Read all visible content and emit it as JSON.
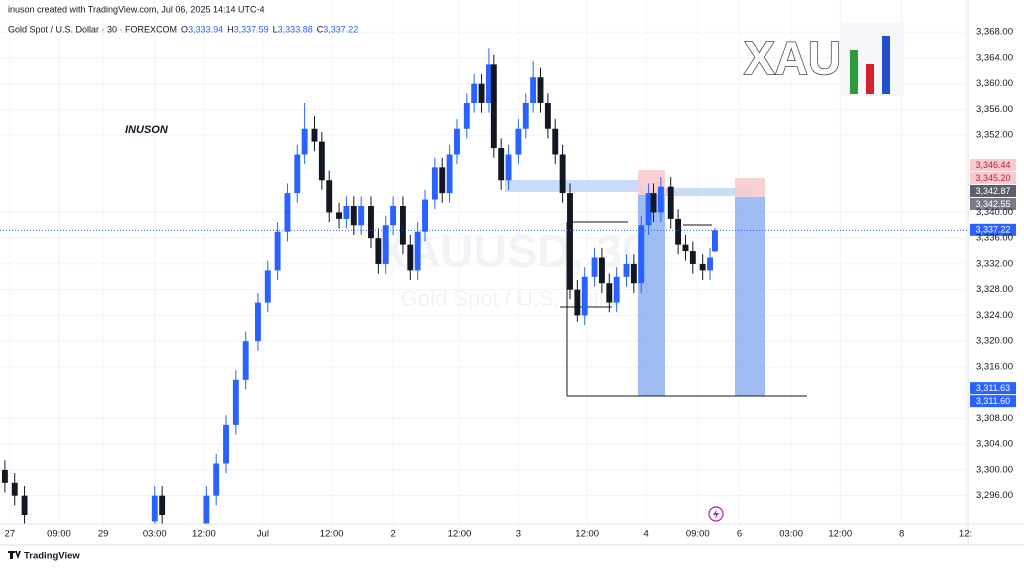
{
  "chart_data": {
    "type": "candlestick",
    "header": "inuson created with TradingView.com, Jul 06, 2025 14:14 UTC-4",
    "symbol": "Gold Spot / U.S. Dollar · 30 · FOREXCOM",
    "ohlc": [
      {
        "key": "O",
        "text": "3,333.94"
      },
      {
        "key": "H",
        "text": "3,337.59"
      },
      {
        "key": "L",
        "text": "3,333.88"
      },
      {
        "key": "C",
        "text": "3,337.22"
      }
    ],
    "annotation": "INUSON",
    "watermark": "XAUUSD, 30",
    "watermark_sub": "Gold Spot / U.S. Dollar",
    "logo": "XAU",
    "brand": "TradingView",
    "up_color": "#2962ff",
    "down_color": "#131722",
    "grid": true,
    "xlim": [
      0,
      394
    ],
    "ylim": [
      3291.6,
      3373
    ],
    "xticks": [
      {
        "value": 4,
        "label": "27"
      },
      {
        "value": 24,
        "label": "09:00"
      },
      {
        "value": 42,
        "label": "29"
      },
      {
        "value": 63,
        "label": "03:00"
      },
      {
        "value": 83,
        "label": "12:00"
      },
      {
        "value": 107,
        "label": "Jul"
      },
      {
        "value": 135,
        "label": "12:00"
      },
      {
        "value": 160,
        "label": "2"
      },
      {
        "value": 187,
        "label": "12:00"
      },
      {
        "value": 211,
        "label": "3"
      },
      {
        "value": 239,
        "label": "12:00"
      },
      {
        "value": 263,
        "label": "4"
      },
      {
        "value": 284,
        "label": "09:00"
      },
      {
        "value": 301,
        "label": "6"
      },
      {
        "value": 322,
        "label": "03:00"
      },
      {
        "value": 342,
        "label": "12:00"
      },
      {
        "value": 367,
        "label": "8"
      },
      {
        "value": 393,
        "label": "12:"
      }
    ],
    "yticks": [
      {
        "value": 3296,
        "label": "3,296.00"
      },
      {
        "value": 3300,
        "label": "3,300.00"
      },
      {
        "value": 3304,
        "label": "3,304.00"
      },
      {
        "value": 3308,
        "label": "3,308.00"
      },
      {
        "value": 3316,
        "label": "3,316.00"
      },
      {
        "value": 3320,
        "label": "3,320.00"
      },
      {
        "value": 3324,
        "label": "3,324.00"
      },
      {
        "value": 3328,
        "label": "3,328.00"
      },
      {
        "value": 3332,
        "label": "3,332.00"
      },
      {
        "value": 3336,
        "label": "3,336.00"
      },
      {
        "value": 3340,
        "label": "3,340.00"
      },
      {
        "value": 3352,
        "label": "3,352.00"
      },
      {
        "value": 3356,
        "label": "3,356.00"
      },
      {
        "value": 3360,
        "label": "3,360.00"
      },
      {
        "value": 3364,
        "label": "3,364.00"
      },
      {
        "value": 3368,
        "label": "3,368.00"
      }
    ],
    "x": [
      2,
      6,
      10,
      63,
      66,
      84,
      88,
      92,
      96,
      100,
      105,
      109,
      113,
      117,
      121,
      124,
      128,
      131,
      134,
      138,
      141,
      144,
      147,
      151,
      154,
      157,
      160,
      164,
      167,
      170,
      173,
      177,
      180,
      183,
      186,
      190,
      193,
      196,
      199,
      201,
      204,
      207,
      211,
      214,
      217,
      220,
      223,
      226,
      229,
      232,
      235,
      238,
      242,
      245,
      248,
      251,
      255,
      258,
      261,
      264,
      266,
      269,
      273,
      276,
      279,
      282,
      286,
      289,
      291
    ],
    "open": [
      3300,
      3298,
      3296,
      3292,
      3296,
      3291,
      3296,
      3301,
      3307,
      3314,
      3320,
      3326,
      3331,
      3337,
      3343,
      3349,
      3353,
      3351,
      3345,
      3340,
      3339,
      3341,
      3338,
      3341,
      3336,
      3332,
      3338,
      3341,
      3335,
      3331,
      3337,
      3342,
      3347,
      3343,
      3349,
      3353,
      3357,
      3360,
      3357,
      3363,
      3350,
      3345,
      3349,
      3353,
      3357,
      3361,
      3357,
      3353,
      3349,
      3343,
      3328,
      3324,
      3330,
      3333,
      3329,
      3326,
      3330,
      3332,
      3329,
      3338,
      3343,
      3340,
      3344,
      3339,
      3335,
      3334,
      3332,
      3331,
      3333.94
    ],
    "high": [
      3301.5,
      3299.5,
      3297.5,
      3297.5,
      3297.5,
      3297.5,
      3302.5,
      3308.5,
      3315.5,
      3321.5,
      3327.5,
      3332.5,
      3338.5,
      3344.5,
      3350.5,
      3357,
      3355,
      3352.5,
      3346.5,
      3341.5,
      3342.5,
      3342.5,
      3342.5,
      3342.5,
      3337.5,
      3339.5,
      3342.5,
      3342.5,
      3336.5,
      3338.5,
      3343.5,
      3348.5,
      3348.5,
      3350.5,
      3354.5,
      3358.5,
      3361.5,
      3361.5,
      3365.5,
      3364.5,
      3351.5,
      3350.5,
      3354.5,
      3358.5,
      3363.5,
      3362.5,
      3358.5,
      3354.5,
      3350.5,
      3344.5,
      3329.5,
      3331.5,
      3334.5,
      3334.5,
      3330.5,
      3331.5,
      3333.5,
      3333.5,
      3339.5,
      3344.5,
      3344.5,
      3345.5,
      3345.5,
      3340.5,
      3336.5,
      3335.5,
      3333.5,
      3334.5,
      3337.59
    ],
    "low": [
      3296.5,
      3294.5,
      3291.5,
      3290.5,
      3291.5,
      3289.5,
      3294.5,
      3299.5,
      3305.5,
      3312.5,
      3318.5,
      3324.5,
      3329.5,
      3335.5,
      3341.5,
      3347.5,
      3349.5,
      3343.5,
      3338.5,
      3337.5,
      3337.5,
      3336.5,
      3336.5,
      3334.5,
      3330.5,
      3330.5,
      3336.5,
      3333.5,
      3329.5,
      3329.5,
      3335.5,
      3340.5,
      3341.5,
      3341.5,
      3347.5,
      3351.5,
      3355.5,
      3355.5,
      3355.5,
      3348.5,
      3343.5,
      3343.5,
      3347.5,
      3351.5,
      3355.5,
      3355.5,
      3351.5,
      3347.5,
      3341.5,
      3326.5,
      3323,
      3322.5,
      3328.5,
      3327.5,
      3324.5,
      3324.5,
      3328.5,
      3327.5,
      3327.5,
      3336.5,
      3338.5,
      3338.5,
      3337.5,
      3333.5,
      3332.5,
      3330.5,
      3329.5,
      3329.5,
      3333.88
    ],
    "close": [
      3298,
      3296,
      3293,
      3296,
      3293,
      3296,
      3301,
      3307,
      3314,
      3320,
      3326,
      3331,
      3337,
      3343,
      3349,
      3353,
      3351,
      3345,
      3340,
      3339,
      3341,
      3338,
      3341,
      3336,
      3332,
      3338,
      3341,
      3335,
      3331,
      3337,
      3342,
      3347,
      3343,
      3349,
      3353,
      3357,
      3360,
      3357,
      3363,
      3350,
      3345,
      3349,
      3353,
      3357,
      3361,
      3357,
      3353,
      3349,
      3343,
      3328,
      3324,
      3330,
      3333,
      3329,
      3326,
      3330,
      3332,
      3329,
      3338,
      3343,
      3340,
      3344,
      3339,
      3335,
      3334,
      3332,
      3331,
      3333,
      3337.22
    ],
    "price_tags": [
      {
        "value": 3346.44,
        "label": "3,346.44",
        "color": "#f8c9cd",
        "text_color": "#b22833"
      },
      {
        "value": 3345.2,
        "label": "3,345.20",
        "color": "#f8c9cd",
        "text_color": "#b22833"
      },
      {
        "value": 3342.87,
        "label": "3,342.87",
        "color": "#5d606b",
        "text_color": "#ffffff"
      },
      {
        "value": 3342.55,
        "label": "3,342.55",
        "color": "#787b86",
        "text_color": "#ffffff"
      },
      {
        "value": 3337.22,
        "label": "3,337.22",
        "color": "#2962ff",
        "text_color": "#ffffff"
      },
      {
        "value": 3311.63,
        "label": "3,311.63",
        "color": "#2962ff",
        "text_color": "#ffffff"
      },
      {
        "value": 3311.6,
        "label": "3,311.60",
        "color": "#2962ff",
        "text_color": "#ffffff"
      }
    ]
  }
}
